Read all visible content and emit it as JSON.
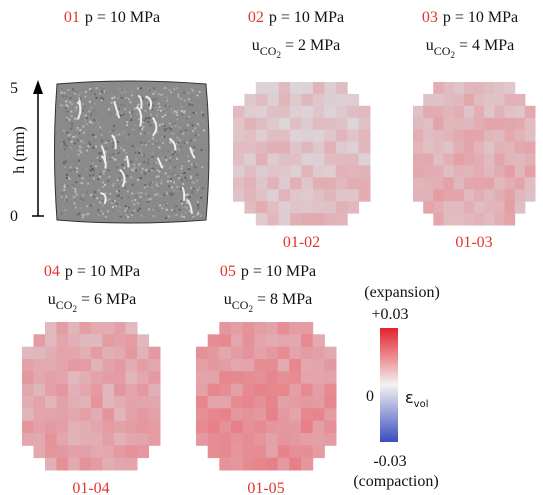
{
  "panels": [
    {
      "number": "01",
      "pressure": "p = 10 MPa"
    },
    {
      "number": "02",
      "pressure": "p = 10 MPa",
      "co2": {
        "symbol": "u",
        "subscript": "CO",
        "subsubscript": "2",
        "value": "= 2 MPa"
      },
      "difference": "01-02"
    },
    {
      "number": "03",
      "pressure": "p = 10 MPa",
      "co2": {
        "symbol": "u",
        "subscript": "CO",
        "subsubscript": "2",
        "value": "= 4 MPa"
      },
      "difference": "01-03"
    },
    {
      "number": "04",
      "pressure": "p = 10 MPa",
      "co2": {
        "symbol": "u",
        "subscript": "CO",
        "subsubscript": "2",
        "value": "= 6 MPa"
      },
      "difference": "01-04"
    },
    {
      "number": "05",
      "pressure": "p = 10 MPa",
      "co2": {
        "symbol": "u",
        "subscript": "CO",
        "subsubscript": "2",
        "value": "= 8 MPa"
      },
      "difference": "01-05"
    }
  ],
  "height_axis": {
    "label": "h (mm)",
    "top": "5",
    "bottom": "0"
  },
  "colorbar": {
    "top_caption": "(expansion)",
    "max": "+0.03",
    "zero": "0",
    "min": "-0.03",
    "bottom_caption": "(compaction)",
    "symbol": "ε",
    "subscript": "vol"
  }
}
